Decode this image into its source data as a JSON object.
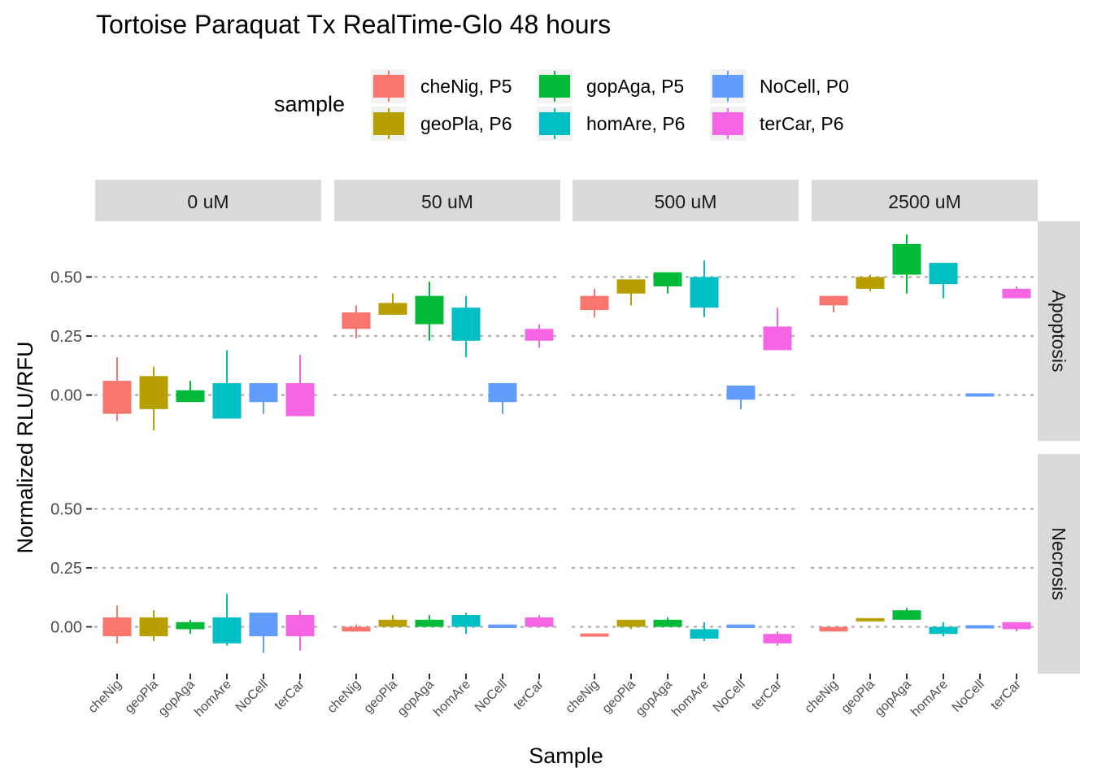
{
  "chart_data": {
    "type": "box",
    "title": "Tortoise Paraquat Tx RealTime-Glo 48 hours",
    "xlabel": "Sample",
    "ylabel": "Normalized RLU/RFU",
    "ylim": [
      -0.3,
      0.75
    ],
    "y_ticks": [
      "0.00",
      "0.25",
      "0.50"
    ],
    "grid": "horizontal dotted at major ticks",
    "legend": {
      "title": "sample",
      "position": "top",
      "entries": [
        {
          "label": "cheNig, P5",
          "color": "#F8766D"
        },
        {
          "label": "geoPla, P6",
          "color": "#B79F00"
        },
        {
          "label": "gopAga, P5",
          "color": "#00BA38"
        },
        {
          "label": "homAre, P6",
          "color": "#00BFC4"
        },
        {
          "label": "NoCell, P0",
          "color": "#619CFF"
        },
        {
          "label": "terCar, P6",
          "color": "#F564E3"
        }
      ]
    },
    "categories": [
      "cheNig",
      "geoPla",
      "gopAga",
      "homAre",
      "NoCell",
      "terCar"
    ],
    "colors": [
      "#F8766D",
      "#B79F00",
      "#00BA38",
      "#00BFC4",
      "#619CFF",
      "#F564E3"
    ],
    "facet_cols": [
      "0 uM",
      "50 uM",
      "500 uM",
      "2500 uM"
    ],
    "facet_rows": [
      "Apoptosis",
      "Necrosis"
    ],
    "box_fields": [
      "whisker_low",
      "box_low",
      "box_high",
      "whisker_high"
    ],
    "panels": [
      {
        "col": "0 uM",
        "row": "Apoptosis",
        "boxes": [
          [
            -0.11,
            -0.08,
            0.06,
            0.16
          ],
          [
            -0.15,
            -0.06,
            0.08,
            0.12
          ],
          [
            -0.03,
            -0.03,
            0.02,
            0.06
          ],
          [
            -0.1,
            -0.1,
            0.05,
            0.19
          ],
          [
            -0.08,
            -0.03,
            0.05,
            0.05
          ],
          [
            -0.09,
            -0.09,
            0.05,
            0.17
          ]
        ]
      },
      {
        "col": "50 uM",
        "row": "Apoptosis",
        "boxes": [
          [
            0.24,
            0.28,
            0.35,
            0.38
          ],
          [
            0.34,
            0.34,
            0.39,
            0.43
          ],
          [
            0.23,
            0.3,
            0.42,
            0.48
          ],
          [
            0.16,
            0.23,
            0.37,
            0.42
          ],
          [
            -0.08,
            -0.03,
            0.05,
            0.05
          ],
          [
            0.2,
            0.23,
            0.28,
            0.3
          ]
        ]
      },
      {
        "col": "500 uM",
        "row": "Apoptosis",
        "boxes": [
          [
            0.33,
            0.36,
            0.42,
            0.45
          ],
          [
            0.38,
            0.43,
            0.49,
            0.49
          ],
          [
            0.43,
            0.46,
            0.52,
            0.52
          ],
          [
            0.33,
            0.37,
            0.5,
            0.57
          ],
          [
            -0.06,
            -0.02,
            0.04,
            0.04
          ],
          [
            0.19,
            0.19,
            0.29,
            0.37
          ]
        ]
      },
      {
        "col": "2500 uM",
        "row": "Apoptosis",
        "boxes": [
          [
            0.35,
            0.38,
            0.42,
            0.42
          ],
          [
            0.44,
            0.45,
            0.5,
            0.51
          ],
          [
            0.43,
            0.51,
            0.64,
            0.68
          ],
          [
            0.41,
            0.47,
            0.56,
            0.56
          ],
          [
            -0.005,
            -0.005,
            0.005,
            0.005
          ],
          [
            0.41,
            0.41,
            0.45,
            0.46
          ]
        ]
      },
      {
        "col": "0 uM",
        "row": "Necrosis",
        "boxes": [
          [
            -0.07,
            -0.04,
            0.04,
            0.09
          ],
          [
            -0.06,
            -0.04,
            0.04,
            0.07
          ],
          [
            -0.03,
            -0.01,
            0.02,
            0.03
          ],
          [
            -0.08,
            -0.07,
            0.04,
            0.14
          ],
          [
            -0.11,
            -0.04,
            0.06,
            0.06
          ],
          [
            -0.1,
            -0.04,
            0.05,
            0.07
          ]
        ]
      },
      {
        "col": "50 uM",
        "row": "Necrosis",
        "boxes": [
          [
            -0.02,
            -0.02,
            0.0,
            0.01
          ],
          [
            0.0,
            0.0,
            0.03,
            0.05
          ],
          [
            0.0,
            0.0,
            0.03,
            0.05
          ],
          [
            -0.03,
            0.0,
            0.05,
            0.06
          ],
          [
            -0.005,
            -0.005,
            0.01,
            0.01
          ],
          [
            0.0,
            0.0,
            0.04,
            0.05
          ]
        ]
      },
      {
        "col": "500 uM",
        "row": "Necrosis",
        "boxes": [
          [
            -0.04,
            -0.04,
            -0.03,
            -0.03
          ],
          [
            -0.01,
            0.0,
            0.03,
            0.03
          ],
          [
            0.0,
            0.0,
            0.03,
            0.04
          ],
          [
            -0.06,
            -0.05,
            -0.01,
            0.02
          ],
          [
            -0.005,
            -0.005,
            0.01,
            0.01
          ],
          [
            -0.08,
            -0.07,
            -0.03,
            -0.02
          ]
        ]
      },
      {
        "col": "2500 uM",
        "row": "Necrosis",
        "boxes": [
          [
            -0.02,
            -0.02,
            0.0,
            0.0
          ],
          [
            0.025,
            0.025,
            0.035,
            0.035
          ],
          [
            0.03,
            0.03,
            0.07,
            0.08
          ],
          [
            -0.04,
            -0.03,
            0.0,
            0.02
          ],
          [
            -0.005,
            -0.005,
            0.005,
            0.005
          ],
          [
            -0.02,
            -0.01,
            0.02,
            0.02
          ]
        ]
      }
    ]
  }
}
